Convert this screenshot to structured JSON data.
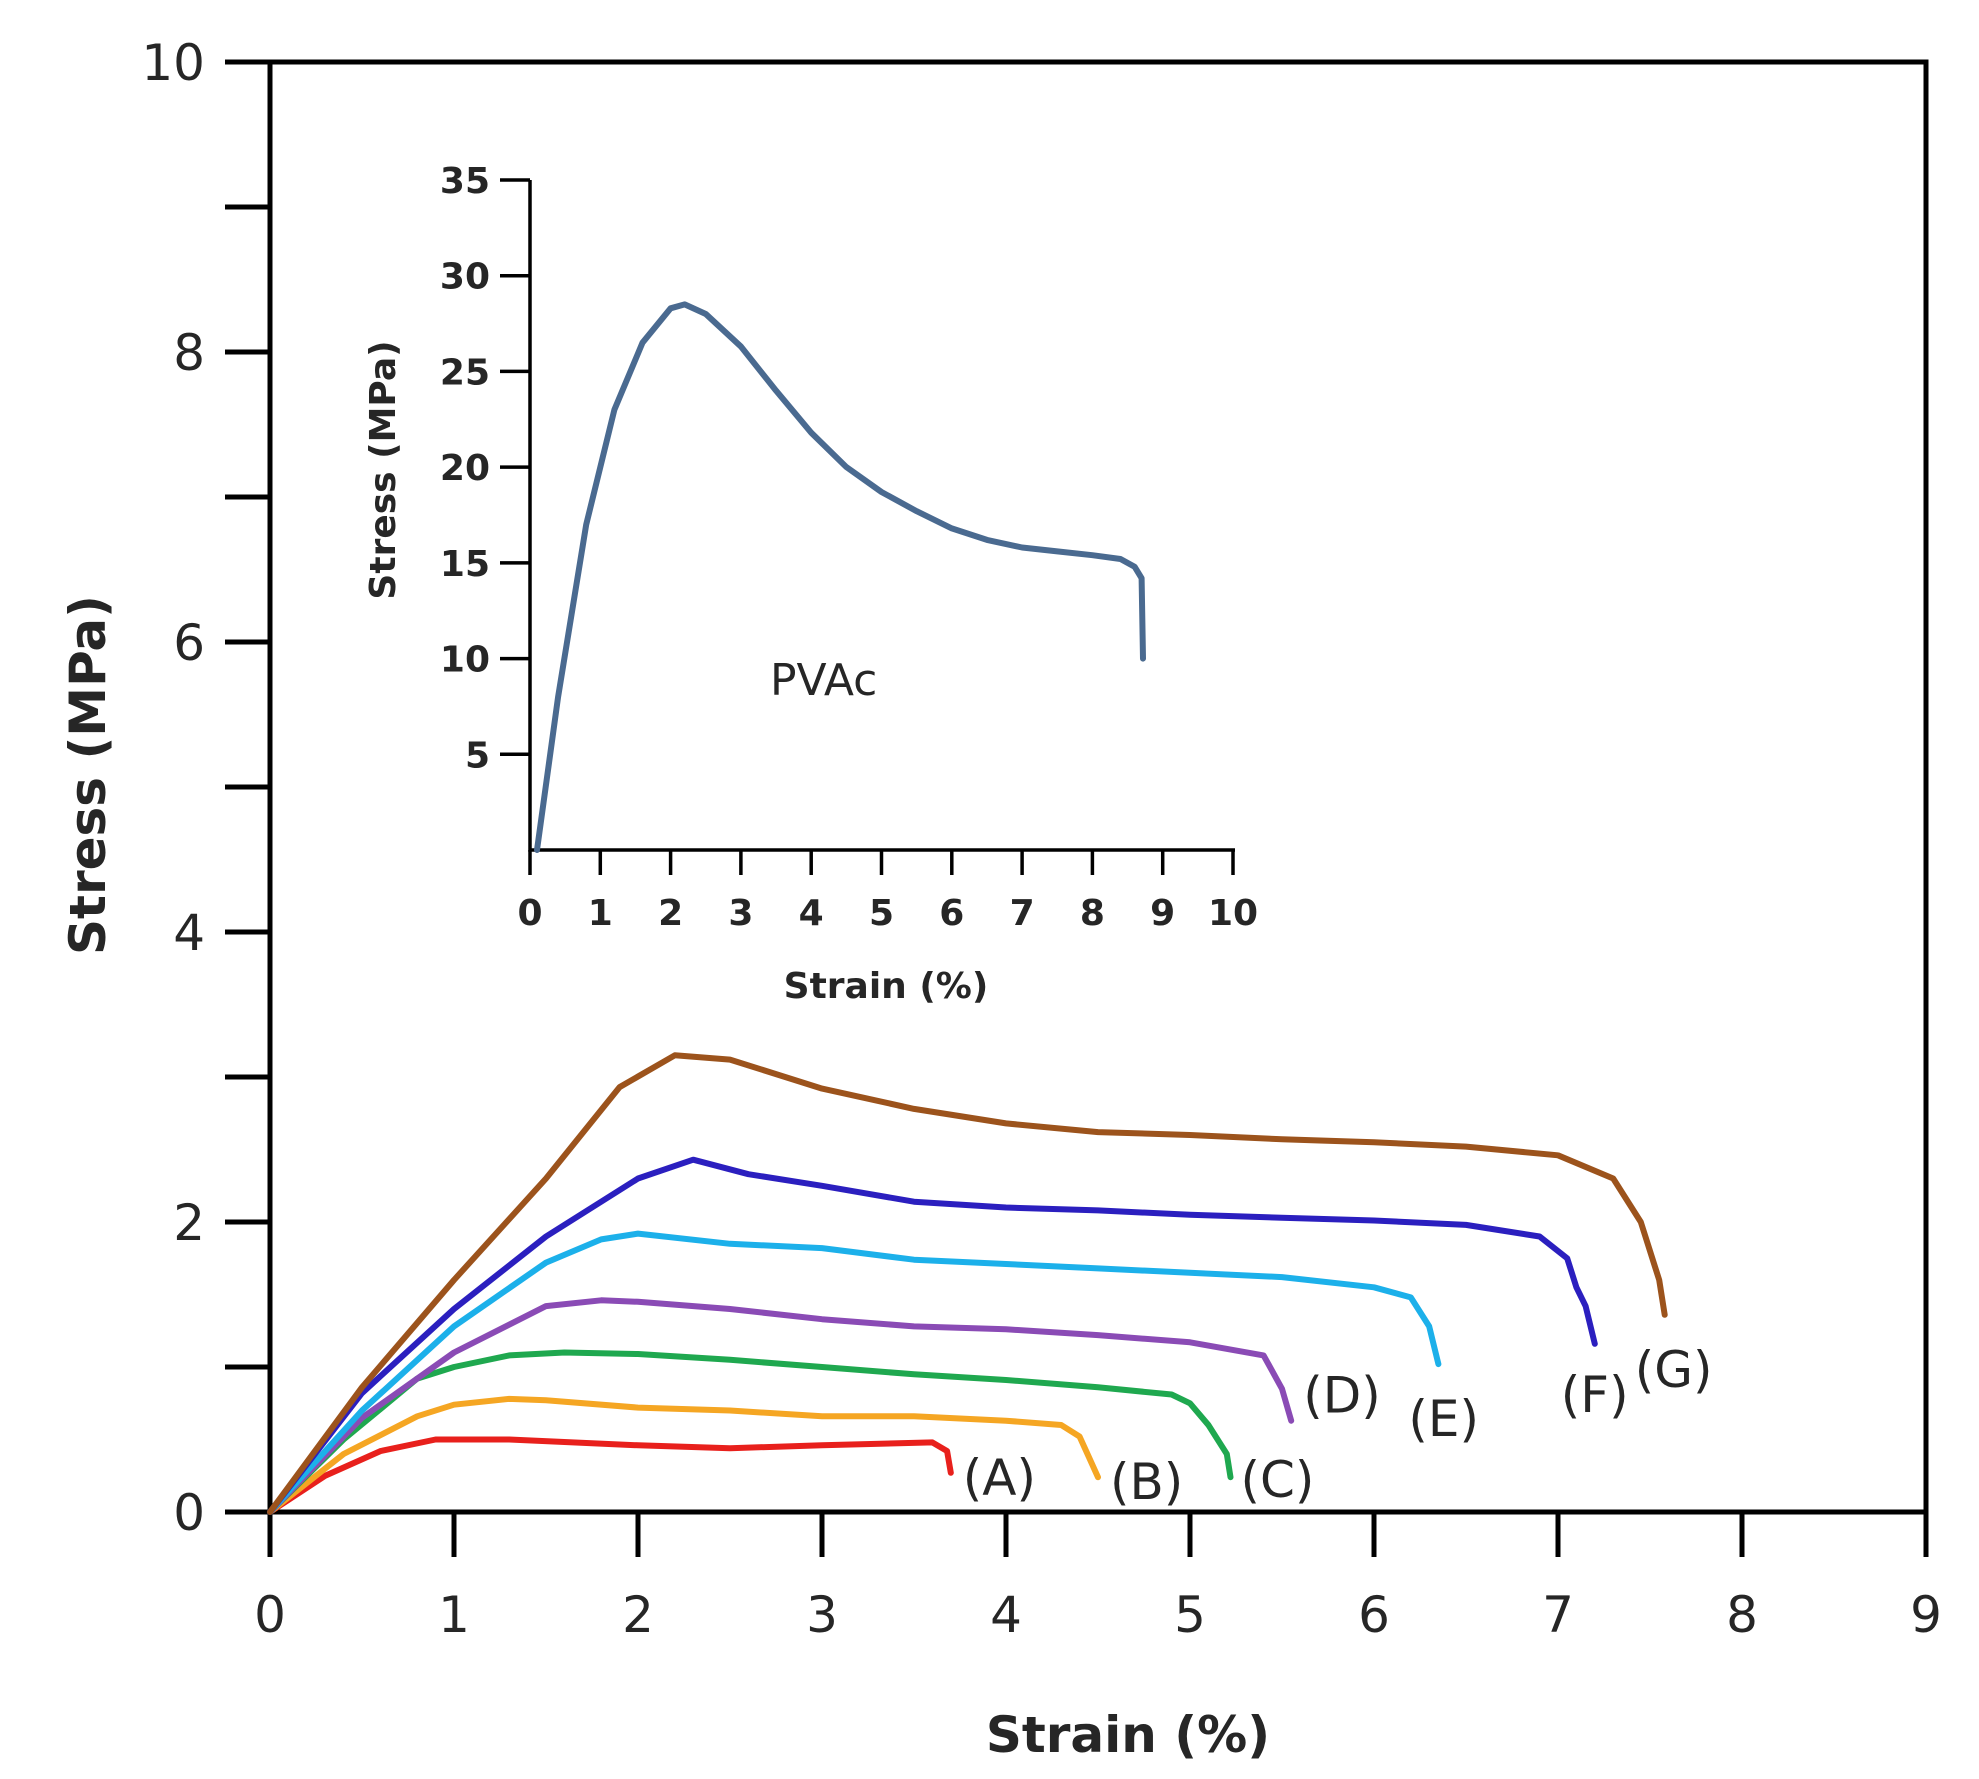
{
  "chart_data": [
    {
      "type": "line",
      "role": "main",
      "title": "",
      "xlabel": "Strain (%)",
      "ylabel": "Stress (MPa)",
      "xlim": [
        0,
        9
      ],
      "ylim": [
        0,
        10
      ],
      "x_ticks": [
        "0",
        "1",
        "2",
        "3",
        "4",
        "5",
        "6",
        "7",
        "8",
        "9"
      ],
      "y_ticks": [
        "0",
        "2",
        "4",
        "6",
        "8",
        "10"
      ],
      "y_tick_values": [
        0,
        2,
        4,
        6,
        8,
        10
      ],
      "y_minor_ticks": [
        1,
        3,
        5,
        7,
        9
      ],
      "grid": false,
      "series": [
        {
          "name": "(A)",
          "color": "#e8201c",
          "x": [
            0,
            0.3,
            0.6,
            0.9,
            1.3,
            2.0,
            2.5,
            3.0,
            3.6,
            3.68,
            3.7
          ],
          "y": [
            0,
            0.25,
            0.42,
            0.5,
            0.5,
            0.46,
            0.44,
            0.46,
            0.48,
            0.42,
            0.27
          ]
        },
        {
          "name": "(B)",
          "color": "#f5a623",
          "x": [
            0,
            0.4,
            0.8,
            1.0,
            1.3,
            1.5,
            2.0,
            2.5,
            3.0,
            3.5,
            4.0,
            4.3,
            4.4,
            4.45,
            4.5
          ],
          "y": [
            0,
            0.4,
            0.66,
            0.74,
            0.78,
            0.77,
            0.72,
            0.7,
            0.66,
            0.66,
            0.63,
            0.6,
            0.52,
            0.38,
            0.24
          ]
        },
        {
          "name": "(C)",
          "color": "#1fa84f",
          "x": [
            0,
            0.4,
            0.8,
            1.0,
            1.3,
            1.6,
            2.0,
            2.5,
            3.0,
            3.5,
            4.0,
            4.5,
            4.9,
            5.0,
            5.1,
            5.2,
            5.22
          ],
          "y": [
            0,
            0.5,
            0.92,
            1.0,
            1.08,
            1.1,
            1.09,
            1.05,
            1.0,
            0.95,
            0.91,
            0.86,
            0.81,
            0.75,
            0.6,
            0.4,
            0.24
          ]
        },
        {
          "name": "(D)",
          "color": "#8a4bb5",
          "x": [
            0,
            0.5,
            1.0,
            1.5,
            1.8,
            2.0,
            2.5,
            3.0,
            3.5,
            4.0,
            4.5,
            5.0,
            5.4,
            5.5,
            5.55
          ],
          "y": [
            0,
            0.65,
            1.1,
            1.42,
            1.46,
            1.45,
            1.4,
            1.33,
            1.28,
            1.26,
            1.22,
            1.17,
            1.08,
            0.85,
            0.63
          ]
        },
        {
          "name": "(E)",
          "color": "#1cb0ea",
          "x": [
            0,
            0.5,
            1.0,
            1.5,
            1.8,
            2.0,
            2.5,
            3.0,
            3.5,
            4.0,
            4.5,
            5.0,
            5.5,
            6.0,
            6.2,
            6.3,
            6.35
          ],
          "y": [
            0,
            0.7,
            1.28,
            1.72,
            1.88,
            1.92,
            1.85,
            1.82,
            1.74,
            1.71,
            1.68,
            1.65,
            1.62,
            1.55,
            1.48,
            1.28,
            1.02
          ]
        },
        {
          "name": "(F)",
          "color": "#2b1fbf",
          "x": [
            0,
            0.5,
            1.0,
            1.5,
            2.0,
            2.3,
            2.6,
            3.0,
            3.5,
            4.0,
            4.5,
            5.0,
            5.5,
            6.0,
            6.5,
            6.9,
            7.05,
            7.1,
            7.15,
            7.2
          ],
          "y": [
            0,
            0.82,
            1.4,
            1.9,
            2.3,
            2.43,
            2.33,
            2.25,
            2.14,
            2.1,
            2.08,
            2.05,
            2.03,
            2.01,
            1.98,
            1.9,
            1.75,
            1.55,
            1.42,
            1.16
          ]
        },
        {
          "name": "(G)",
          "color": "#9c531c",
          "x": [
            0,
            0.5,
            1.0,
            1.5,
            1.9,
            2.2,
            2.5,
            3.0,
            3.5,
            4.0,
            4.5,
            5.0,
            5.5,
            6.0,
            6.5,
            7.0,
            7.3,
            7.45,
            7.55,
            7.58
          ],
          "y": [
            0,
            0.86,
            1.6,
            2.3,
            2.93,
            3.15,
            3.12,
            2.92,
            2.78,
            2.68,
            2.62,
            2.6,
            2.57,
            2.55,
            2.52,
            2.46,
            2.3,
            2.0,
            1.6,
            1.36
          ]
        }
      ]
    },
    {
      "type": "line",
      "role": "inset",
      "title": "",
      "xlabel": "Strain (%)",
      "ylabel": "Stress (MPa)",
      "xlim": [
        0,
        10
      ],
      "ylim": [
        0,
        35
      ],
      "x_ticks": [
        "0",
        "1",
        "2",
        "3",
        "4",
        "5",
        "6",
        "7",
        "8",
        "9",
        "10"
      ],
      "y_ticks": [
        "5",
        "10",
        "15",
        "20",
        "25",
        "30",
        "35"
      ],
      "y_tick_values": [
        5,
        10,
        15,
        20,
        25,
        30,
        35
      ],
      "annotation": "PVAc",
      "series": [
        {
          "name": "PVAc",
          "color": "#4a6a90",
          "x": [
            0.1,
            0.4,
            0.8,
            1.2,
            1.6,
            2.0,
            2.2,
            2.5,
            3.0,
            3.5,
            4.0,
            4.5,
            5.0,
            5.5,
            6.0,
            6.5,
            7.0,
            7.5,
            8.0,
            8.4,
            8.6,
            8.7,
            8.72
          ],
          "y": [
            0,
            8,
            17,
            23,
            26.5,
            28.3,
            28.5,
            28.0,
            26.3,
            24.0,
            21.8,
            20.0,
            18.7,
            17.7,
            16.8,
            16.2,
            15.8,
            15.6,
            15.4,
            15.2,
            14.8,
            14.2,
            10
          ]
        }
      ]
    }
  ]
}
